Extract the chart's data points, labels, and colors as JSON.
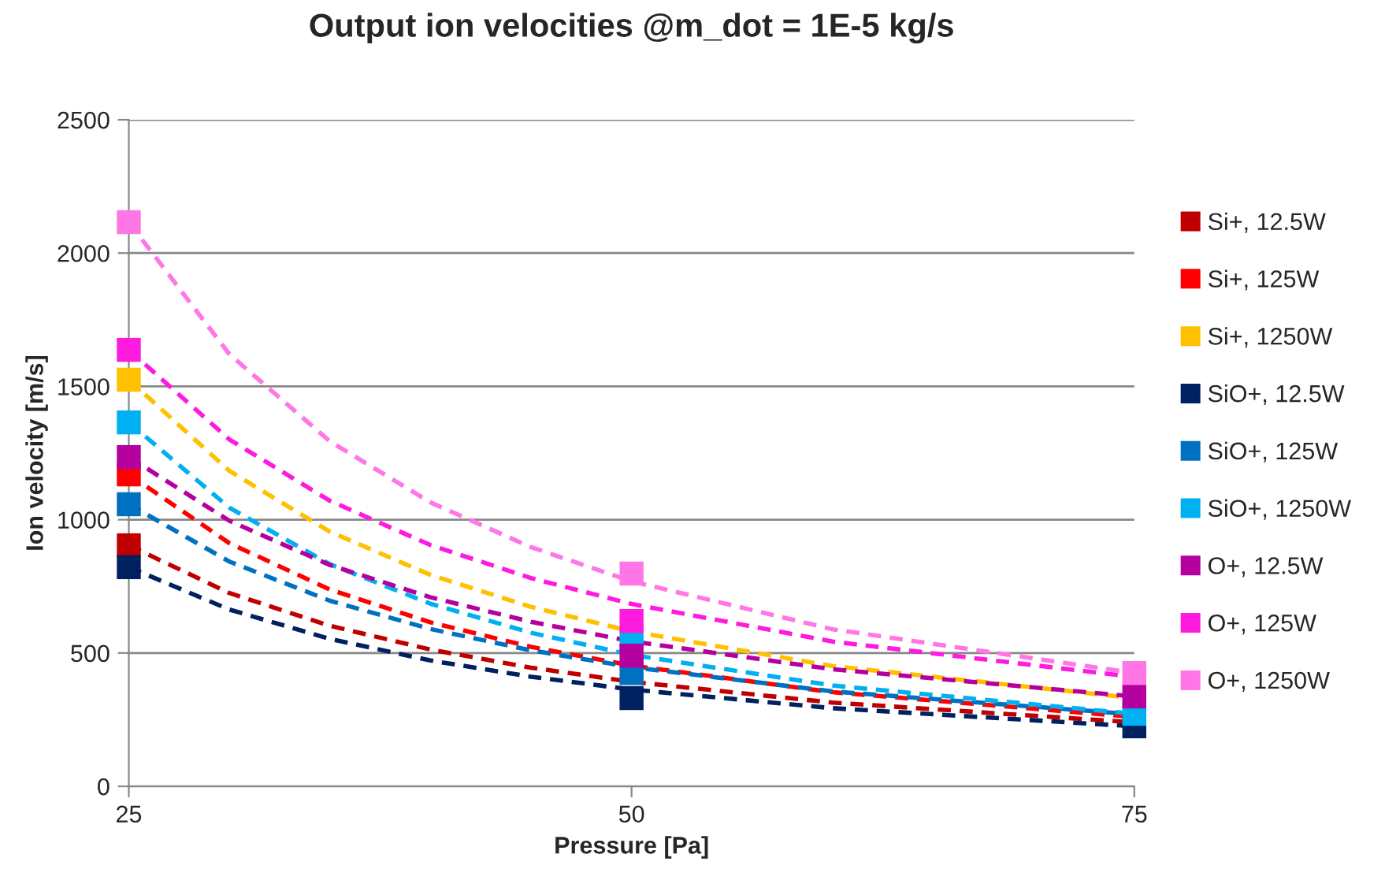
{
  "chart_data": {
    "type": "scatter",
    "title": "Output ion velocities @m_dot = 1E-5 kg/s",
    "xlabel": "Pressure [Pa]",
    "ylabel": "Ion velocity [m/s]",
    "xlim": [
      25,
      75
    ],
    "xticks": [
      25,
      50,
      75
    ],
    "ylim": [
      0,
      2500
    ],
    "yticks": [
      0,
      500,
      1000,
      1500,
      2000,
      2500
    ],
    "grid": "y",
    "legend": "right",
    "series": [
      {
        "type": "line",
        "line_style": "dashed",
        "color": "#c00000",
        "x": [
          25,
          30,
          35,
          40,
          45,
          50,
          60,
          75
        ],
        "values": [
          904,
          725,
          602,
          513,
          445,
          392,
          314,
          240
        ]
      },
      {
        "type": "line",
        "line_style": "dashed",
        "color": "#ff0000",
        "x": [
          25,
          30,
          35,
          40,
          45,
          50,
          60,
          75
        ],
        "values": [
          1170,
          912,
          738,
          615,
          523,
          453,
          353,
          260
        ]
      },
      {
        "type": "line",
        "line_style": "dashed",
        "color": "#ffc000",
        "x": [
          25,
          30,
          35,
          40,
          45,
          50,
          60,
          75
        ],
        "values": [
          1525,
          1183,
          955,
          793,
          673,
          581,
          451,
          331
        ]
      },
      {
        "type": "line",
        "line_style": "dashed",
        "color": "#002060",
        "x": [
          25,
          30,
          35,
          40,
          45,
          50,
          60,
          75
        ],
        "values": [
          822,
          663,
          553,
          472,
          411,
          363,
          293,
          225
        ]
      },
      {
        "type": "line",
        "line_style": "dashed",
        "color": "#0070c0",
        "x": [
          25,
          30,
          35,
          40,
          45,
          50,
          60,
          75
        ],
        "values": [
          1058,
          843,
          696,
          590,
          510,
          447,
          356,
          270
        ]
      },
      {
        "type": "line",
        "line_style": "dashed",
        "color": "#00b0f0",
        "x": [
          25,
          30,
          35,
          40,
          45,
          50,
          60,
          75
        ],
        "values": [
          1365,
          1045,
          833,
          685,
          576,
          493,
          378,
          272
        ]
      },
      {
        "type": "line",
        "line_style": "dashed",
        "color": "#b4009e",
        "x": [
          25,
          30,
          35,
          40,
          45,
          50,
          60,
          75
        ],
        "values": [
          1235,
          996,
          830,
          709,
          617,
          544,
          439,
          337
        ]
      },
      {
        "type": "line",
        "line_style": "dashed",
        "color": "#ff1ae0",
        "x": [
          25,
          30,
          35,
          40,
          45,
          50,
          60,
          75
        ],
        "values": [
          1637,
          1301,
          1071,
          905,
          781,
          684,
          543,
          410
        ]
      },
      {
        "type": "line",
        "line_style": "dashed",
        "color": "#ff77e6",
        "x": [
          25,
          30,
          35,
          40,
          45,
          50,
          60,
          75
        ],
        "values": [
          2116,
          1621,
          1294,
          1065,
          897,
          769,
          589,
          425
        ]
      },
      {
        "marker": "square",
        "name": "Si+, 12.5W",
        "color": "#c00000",
        "x": [
          25
        ],
        "values": [
          904
        ]
      },
      {
        "marker": "square",
        "name": "Si+, 125W",
        "color": "#ff0000",
        "x": [
          25
        ],
        "values": [
          1170
        ]
      },
      {
        "marker": "square",
        "name": "Si+, 1250W",
        "color": "#ffc000",
        "x": [
          25
        ],
        "values": [
          1525
        ]
      },
      {
        "marker": "square",
        "name": "SiO+, 12.5W",
        "color": "#002060",
        "x": [
          25,
          50,
          75
        ],
        "values": [
          822,
          331,
          225
        ]
      },
      {
        "marker": "square",
        "name": "SiO+, 125W",
        "color": "#0070c0",
        "x": [
          25,
          50
        ],
        "values": [
          1058,
          425
        ]
      },
      {
        "marker": "square",
        "name": "SiO+, 1250W",
        "color": "#00b0f0",
        "x": [
          25,
          50,
          75
        ],
        "values": [
          1365,
          550,
          272
        ]
      },
      {
        "marker": "square",
        "name": "O+, 12.5W",
        "color": "#b4009e",
        "x": [
          25,
          50,
          75
        ],
        "values": [
          1235,
          490,
          337
        ]
      },
      {
        "marker": "square",
        "name": "O+, 125W",
        "color": "#ff1ae0",
        "x": [
          25,
          50
        ],
        "values": [
          1637,
          620
        ]
      },
      {
        "marker": "square",
        "name": "O+, 1250W",
        "color": "#ff77e6",
        "x": [
          25,
          50,
          75
        ],
        "values": [
          2116,
          798,
          425
        ]
      }
    ]
  }
}
